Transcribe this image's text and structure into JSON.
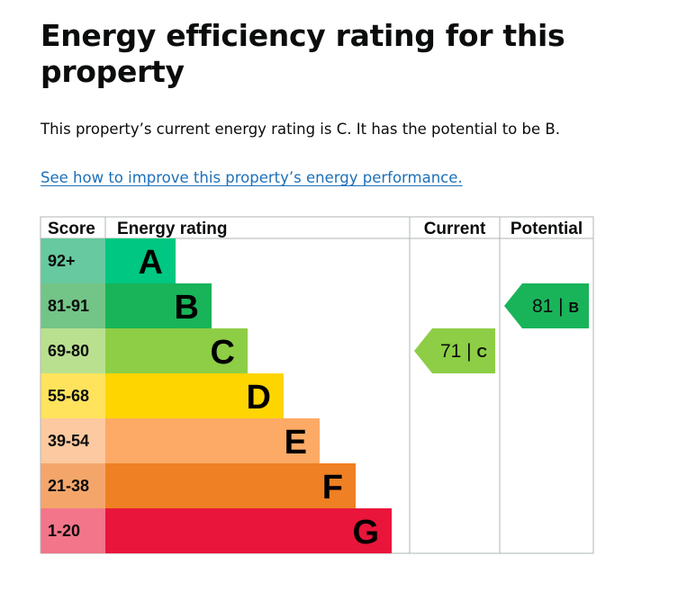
{
  "page": {
    "title": "Energy efficiency rating for this property",
    "summary": "This property’s current energy rating is C. It has the potential to be B.",
    "link": "See how to improve this property’s energy performance."
  },
  "colors": {
    "border": "#b1b4b6",
    "link": "#1d70b8",
    "text": "#0b0c0c"
  },
  "chart_data": {
    "type": "table",
    "headers": {
      "score": "Score",
      "rating": "Energy rating",
      "current": "Current",
      "potential": "Potential"
    },
    "bands": [
      {
        "score": "92+",
        "letter": "A",
        "color": "#00c781",
        "score_bg": "#67c99f"
      },
      {
        "score": "81-91",
        "letter": "B",
        "color": "#19b459",
        "score_bg": "#72c487"
      },
      {
        "score": "69-80",
        "letter": "C",
        "color": "#8dce46",
        "score_bg": "#b9e08f"
      },
      {
        "score": "55-68",
        "letter": "D",
        "color": "#ffd500",
        "score_bg": "#ffe35c"
      },
      {
        "score": "39-54",
        "letter": "E",
        "color": "#fcaa65",
        "score_bg": "#fdc9a0"
      },
      {
        "score": "21-38",
        "letter": "F",
        "color": "#ef8023",
        "score_bg": "#f4a66a"
      },
      {
        "score": "1-20",
        "letter": "G",
        "color": "#e9153b",
        "score_bg": "#f27589"
      }
    ],
    "current": {
      "value": 71,
      "band": "C"
    },
    "potential": {
      "value": 81,
      "band": "B"
    }
  }
}
